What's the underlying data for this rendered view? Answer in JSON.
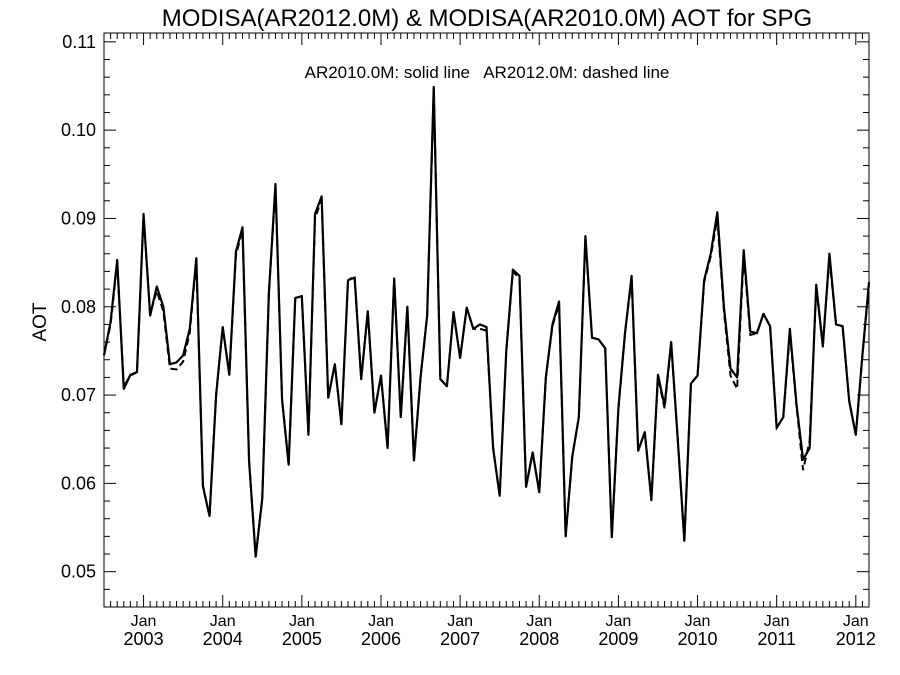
{
  "chart_data": {
    "type": "line",
    "title": "MODISA(AR2012.0M) & MODISA(AR2010.0M)  AOT for SPG",
    "annotation": "AR2010.0M: solid line   AR2012.0M: dashed line",
    "ylabel": "AOT",
    "xlabel": "",
    "ylim": [
      0.046,
      0.111
    ],
    "xlim": [
      "2002-07",
      "2012-03"
    ],
    "y_ticks": [
      "0.05",
      "0.06",
      "0.07",
      "0.08",
      "0.09",
      "0.10",
      "0.11"
    ],
    "x_ticks": [
      {
        "month": "Jan",
        "year": "2003"
      },
      {
        "month": "Jan",
        "year": "2004"
      },
      {
        "month": "Jan",
        "year": "2005"
      },
      {
        "month": "Jan",
        "year": "2006"
      },
      {
        "month": "Jan",
        "year": "2007"
      },
      {
        "month": "Jan",
        "year": "2008"
      },
      {
        "month": "Jan",
        "year": "2009"
      },
      {
        "month": "Jan",
        "year": "2010"
      },
      {
        "month": "Jan",
        "year": "2011"
      },
      {
        "month": "Jan",
        "year": "2012"
      }
    ],
    "grid": false,
    "legend": "none",
    "x": [
      "2002-07",
      "2002-08",
      "2002-09",
      "2002-10",
      "2002-11",
      "2002-12",
      "2003-01",
      "2003-02",
      "2003-03",
      "2003-04",
      "2003-05",
      "2003-06",
      "2003-07",
      "2003-08",
      "2003-09",
      "2003-10",
      "2003-11",
      "2003-12",
      "2004-01",
      "2004-02",
      "2004-03",
      "2004-04",
      "2004-05",
      "2004-06",
      "2004-07",
      "2004-08",
      "2004-09",
      "2004-10",
      "2004-11",
      "2004-12",
      "2005-01",
      "2005-02",
      "2005-03",
      "2005-04",
      "2005-05",
      "2005-06",
      "2005-07",
      "2005-08",
      "2005-09",
      "2005-10",
      "2005-11",
      "2005-12",
      "2006-01",
      "2006-02",
      "2006-03",
      "2006-04",
      "2006-05",
      "2006-06",
      "2006-07",
      "2006-08",
      "2006-09",
      "2006-10",
      "2006-11",
      "2006-12",
      "2007-01",
      "2007-02",
      "2007-03",
      "2007-04",
      "2007-05",
      "2007-06",
      "2007-07",
      "2007-08",
      "2007-09",
      "2007-10",
      "2007-11",
      "2007-12",
      "2008-01",
      "2008-02",
      "2008-03",
      "2008-04",
      "2008-05",
      "2008-06",
      "2008-07",
      "2008-08",
      "2008-09",
      "2008-10",
      "2008-11",
      "2008-12",
      "2009-01",
      "2009-02",
      "2009-03",
      "2009-04",
      "2009-05",
      "2009-06",
      "2009-07",
      "2009-08",
      "2009-09",
      "2009-10",
      "2009-11",
      "2009-12",
      "2010-01",
      "2010-02",
      "2010-03",
      "2010-04",
      "2010-05",
      "2010-06",
      "2010-07",
      "2010-08",
      "2010-09",
      "2010-10",
      "2010-11",
      "2010-12",
      "2011-01",
      "2011-02",
      "2011-03",
      "2011-04",
      "2011-05",
      "2011-06",
      "2011-07",
      "2011-08",
      "2011-09",
      "2011-10",
      "2011-11",
      "2011-12",
      "2012-01",
      "2012-02",
      "2012-03"
    ],
    "series": [
      {
        "style": "solid",
        "values": [
          0.0745,
          0.0783,
          0.0853,
          0.0707,
          0.0723,
          0.0726,
          0.0905,
          0.079,
          0.0823,
          0.08,
          0.0735,
          0.0737,
          0.0745,
          0.0775,
          0.0855,
          0.0597,
          0.0563,
          0.07,
          0.0777,
          0.0723,
          0.0862,
          0.089,
          0.0625,
          0.0517,
          0.0583,
          0.0815,
          0.0939,
          0.0695,
          0.0621,
          0.081,
          0.0812,
          0.0655,
          0.0905,
          0.0925,
          0.0697,
          0.0735,
          0.0667,
          0.083,
          0.0833,
          0.0718,
          0.0795,
          0.068,
          0.0722,
          0.064,
          0.0832,
          0.0675,
          0.08,
          0.0626,
          0.072,
          0.079,
          0.1049,
          0.0718,
          0.071,
          0.0794,
          0.0742,
          0.0799,
          0.0775,
          0.078,
          0.0777,
          0.064,
          0.0586,
          0.075,
          0.0842,
          0.0835,
          0.0596,
          0.0635,
          0.059,
          0.072,
          0.078,
          0.0806,
          0.054,
          0.063,
          0.0675,
          0.088,
          0.0765,
          0.0763,
          0.0753,
          0.0539,
          0.0685,
          0.077,
          0.0835,
          0.0637,
          0.0658,
          0.0581,
          0.0723,
          0.0688,
          0.076,
          0.065,
          0.0535,
          0.0713,
          0.0722,
          0.083,
          0.086,
          0.0907,
          0.08,
          0.073,
          0.072,
          0.0864,
          0.0772,
          0.077,
          0.0792,
          0.0778,
          0.0663,
          0.0675,
          0.0775,
          0.069,
          0.0627,
          0.064,
          0.0825,
          0.0755,
          0.086,
          0.078,
          0.0778,
          0.0693,
          0.0655,
          0.0745,
          0.0828
        ]
      },
      {
        "style": "dashed",
        "values": [
          0.0745,
          0.078,
          0.085,
          0.071,
          0.0722,
          0.0726,
          0.0902,
          0.0792,
          0.0818,
          0.0795,
          0.073,
          0.0729,
          0.0738,
          0.077,
          0.0852,
          0.0597,
          0.0563,
          0.07,
          0.0777,
          0.0723,
          0.0858,
          0.0887,
          0.0625,
          0.0517,
          0.0583,
          0.0815,
          0.0935,
          0.0695,
          0.0621,
          0.081,
          0.0812,
          0.0655,
          0.09,
          0.0922,
          0.0697,
          0.0735,
          0.0667,
          0.083,
          0.0835,
          0.0718,
          0.0795,
          0.068,
          0.0722,
          0.064,
          0.0832,
          0.0675,
          0.08,
          0.0626,
          0.072,
          0.079,
          0.1045,
          0.0718,
          0.071,
          0.0794,
          0.0742,
          0.0799,
          0.0775,
          0.0775,
          0.0773,
          0.064,
          0.0586,
          0.075,
          0.084,
          0.0832,
          0.0596,
          0.0635,
          0.059,
          0.072,
          0.0778,
          0.0803,
          0.054,
          0.063,
          0.0675,
          0.0878,
          0.0765,
          0.0763,
          0.0753,
          0.0539,
          0.0685,
          0.077,
          0.0832,
          0.0637,
          0.0658,
          0.0581,
          0.072,
          0.0685,
          0.0758,
          0.065,
          0.0535,
          0.0713,
          0.0722,
          0.0828,
          0.0857,
          0.09,
          0.0795,
          0.0722,
          0.0707,
          0.0858,
          0.0768,
          0.077,
          0.0792,
          0.0778,
          0.0663,
          0.0675,
          0.077,
          0.0688,
          0.0615,
          0.0648,
          0.082,
          0.0758,
          0.0855,
          0.078,
          0.0778,
          0.0693,
          0.0655,
          0.0745,
          0.0825
        ]
      }
    ]
  }
}
